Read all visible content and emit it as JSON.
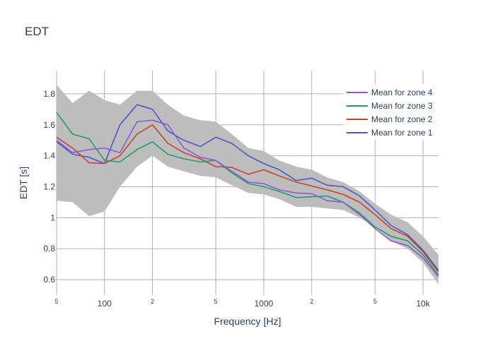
{
  "chart_data": {
    "type": "line",
    "title": "EDT",
    "xlabel": "Frequency [Hz]",
    "ylabel": "EDT [s]",
    "x_scale": "log",
    "xlim": [
      50,
      12500
    ],
    "ylim": [
      0.5,
      1.95
    ],
    "grid": true,
    "legend_position": "top-right",
    "x_ticks": [
      {
        "value": 50,
        "label": "5",
        "minor": true
      },
      {
        "value": 100,
        "label": "100",
        "minor": false
      },
      {
        "value": 200,
        "label": "2",
        "minor": true
      },
      {
        "value": 500,
        "label": "5",
        "minor": true
      },
      {
        "value": 1000,
        "label": "1000",
        "minor": false
      },
      {
        "value": 2000,
        "label": "2",
        "minor": true
      },
      {
        "value": 5000,
        "label": "5",
        "minor": true
      },
      {
        "value": 10000,
        "label": "10k",
        "minor": false
      }
    ],
    "y_ticks": [
      {
        "value": 0.6,
        "label": "0.6"
      },
      {
        "value": 0.8,
        "label": "0.8"
      },
      {
        "value": 1.0,
        "label": "1"
      },
      {
        "value": 1.2,
        "label": "1.2"
      },
      {
        "value": 1.4,
        "label": "1.4"
      },
      {
        "value": 1.6,
        "label": "1.6"
      },
      {
        "value": 1.8,
        "label": "1.8"
      }
    ],
    "x": [
      50,
      63,
      80,
      100,
      125,
      160,
      200,
      250,
      315,
      400,
      500,
      630,
      800,
      1000,
      1250,
      1600,
      2000,
      2500,
      3150,
      4000,
      5000,
      6300,
      8000,
      10000,
      12500
    ],
    "band": {
      "upper": [
        1.86,
        1.74,
        1.82,
        1.76,
        1.73,
        1.82,
        1.82,
        1.73,
        1.66,
        1.63,
        1.62,
        1.54,
        1.45,
        1.43,
        1.37,
        1.33,
        1.31,
        1.26,
        1.23,
        1.17,
        1.09,
        1.02,
        0.97,
        0.88,
        0.76
      ],
      "lower": [
        1.11,
        1.1,
        1.01,
        1.04,
        1.2,
        1.33,
        1.4,
        1.33,
        1.3,
        1.27,
        1.26,
        1.21,
        1.16,
        1.15,
        1.12,
        1.07,
        1.07,
        1.06,
        1.05,
        1.0,
        0.94,
        0.85,
        0.8,
        0.71,
        0.57
      ],
      "color": "#bdbdbd"
    },
    "series": [
      {
        "name": "Mean for zone 4",
        "color": "#8e57d6",
        "values": [
          1.5,
          1.42,
          1.44,
          1.45,
          1.42,
          1.62,
          1.63,
          1.6,
          1.45,
          1.39,
          1.37,
          1.3,
          1.23,
          1.22,
          1.18,
          1.16,
          1.155,
          1.11,
          1.1,
          1.02,
          0.93,
          0.85,
          0.82,
          0.74,
          0.62
        ]
      },
      {
        "name": "Mean for zone 3",
        "color": "#1f9e6b",
        "values": [
          1.68,
          1.54,
          1.51,
          1.37,
          1.36,
          1.44,
          1.49,
          1.41,
          1.38,
          1.36,
          1.37,
          1.29,
          1.22,
          1.2,
          1.17,
          1.13,
          1.135,
          1.14,
          1.1,
          1.03,
          0.94,
          0.88,
          0.85,
          0.76,
          0.63
        ]
      },
      {
        "name": "Mean for zone 2",
        "color": "#c0452e",
        "values": [
          1.52,
          1.45,
          1.355,
          1.35,
          1.4,
          1.54,
          1.6,
          1.48,
          1.42,
          1.38,
          1.33,
          1.325,
          1.28,
          1.31,
          1.27,
          1.23,
          1.205,
          1.18,
          1.15,
          1.1,
          1.02,
          0.93,
          0.88,
          0.78,
          0.65
        ]
      },
      {
        "name": "Mean for zone 1",
        "color": "#4c58c8",
        "values": [
          1.49,
          1.41,
          1.39,
          1.35,
          1.6,
          1.73,
          1.7,
          1.56,
          1.5,
          1.46,
          1.52,
          1.48,
          1.4,
          1.35,
          1.31,
          1.24,
          1.255,
          1.21,
          1.2,
          1.14,
          1.05,
          0.95,
          0.89,
          0.79,
          0.66
        ]
      }
    ]
  }
}
